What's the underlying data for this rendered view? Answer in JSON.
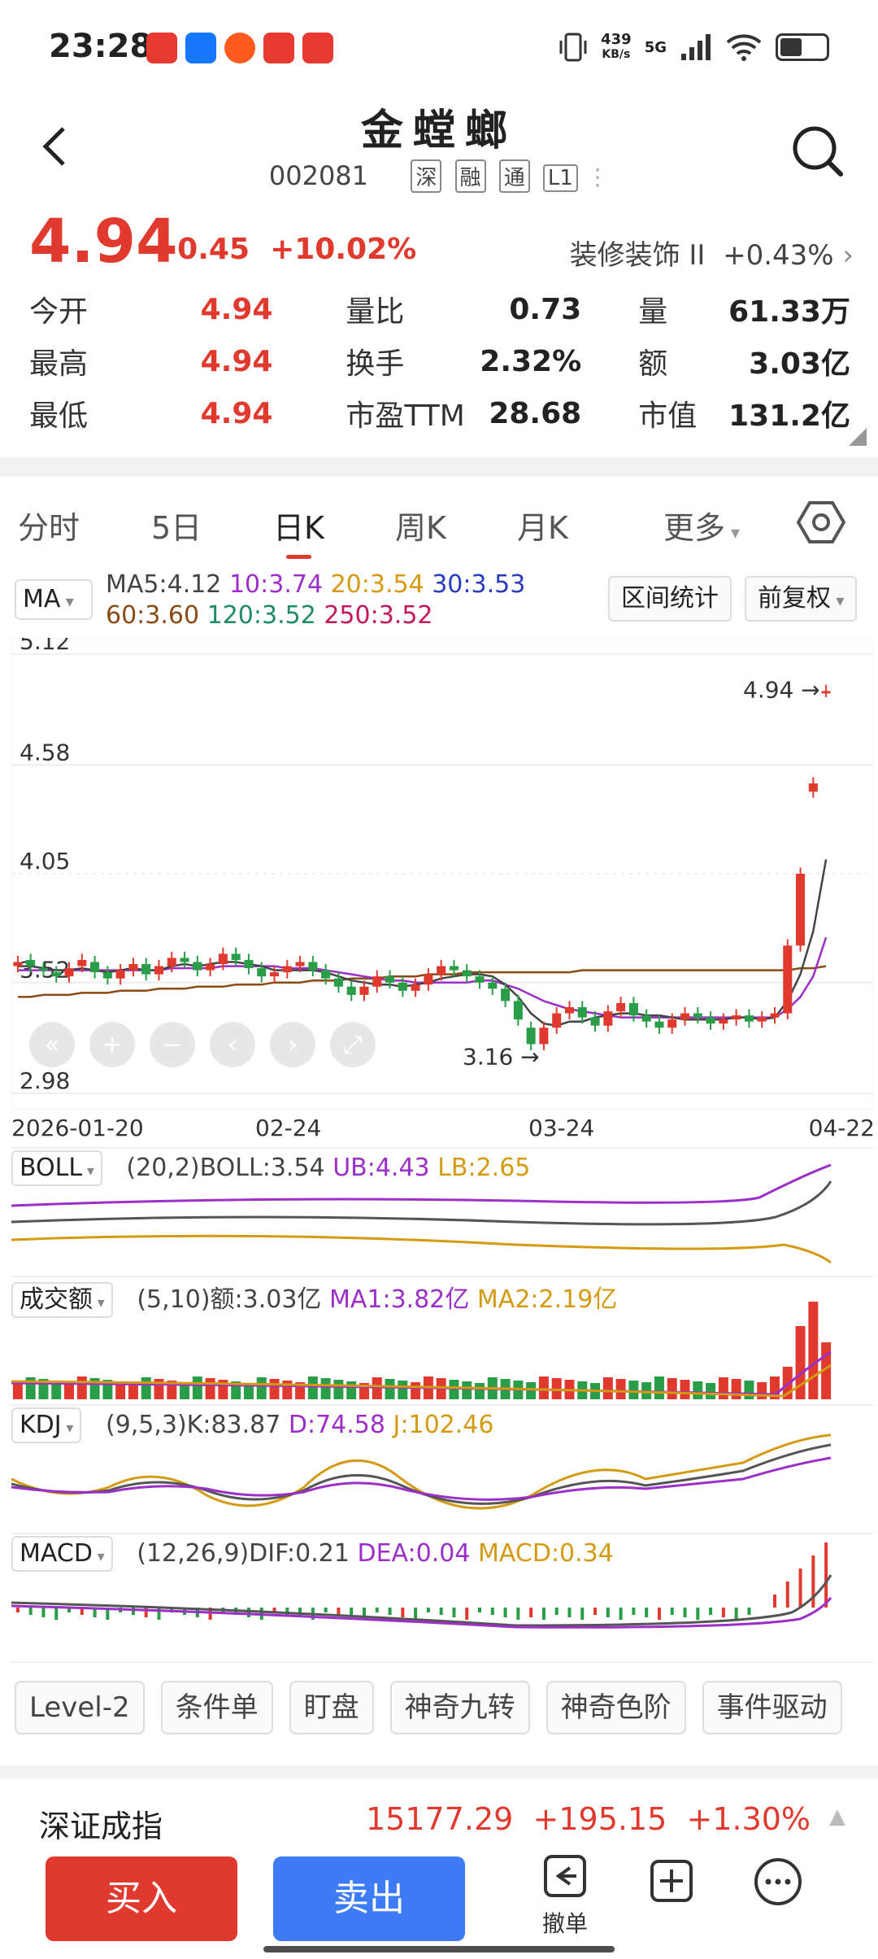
{
  "status": {
    "time": "23:28",
    "speed_value": "439",
    "speed_unit": "KB/s",
    "network": "5G",
    "battery_level": 0.45
  },
  "header": {
    "title": "金螳螂",
    "code": "002081",
    "tags": [
      "深",
      "融",
      "通",
      "L1"
    ]
  },
  "quote": {
    "price": "4.94",
    "change": "+0.45",
    "change_pct": "+10.02%",
    "sector_name": "装修装饰 II",
    "sector_change": "+0.43%",
    "rows": [
      {
        "k1": "今开",
        "v1": "4.94",
        "k2": "量比",
        "v2": "0.73",
        "k3": "量",
        "v3": "61.33万"
      },
      {
        "k1": "最高",
        "v1": "4.94",
        "k2": "换手",
        "v2": "2.32%",
        "k3": "额",
        "v3": "3.03亿"
      },
      {
        "k1": "最低",
        "v1": "4.94",
        "k2": "市盈TTM",
        "v2": "28.68",
        "k3": "市值",
        "v3": "131.2亿"
      }
    ]
  },
  "tabs": [
    "分时",
    "5日",
    "日K",
    "周K",
    "月K",
    "更多"
  ],
  "ma": {
    "select": "MA",
    "line1": [
      {
        "text": "MA5:4.12",
        "color": "#444444"
      },
      {
        "text": "10:3.74",
        "color": "#9b2fc7"
      },
      {
        "text": "20:3.54",
        "color": "#d49a12"
      },
      {
        "text": "30:3.53",
        "color": "#2b3bbd"
      }
    ],
    "line2": [
      {
        "text": "60:3.60",
        "color": "#8b4a14"
      },
      {
        "text": "120:3.52",
        "color": "#1f8a6a"
      },
      {
        "text": "250:3.52",
        "color": "#c2185b"
      }
    ],
    "range_btn": "区间统计",
    "adjust_btn": "前复权"
  },
  "chart_data": {
    "type": "candlestick",
    "y_ticks": [
      "5.12",
      "4.58",
      "4.05",
      "3.52",
      "2.98"
    ],
    "ylim": [
      2.98,
      5.12
    ],
    "x_ticks": [
      "2026-01-20",
      "02-24",
      "03-24",
      "04-22"
    ],
    "high_label": "4.94",
    "low_label": "3.16",
    "closes": [
      3.62,
      3.6,
      3.58,
      3.55,
      3.59,
      3.63,
      3.57,
      3.54,
      3.58,
      3.61,
      3.56,
      3.6,
      3.64,
      3.62,
      3.58,
      3.61,
      3.66,
      3.63,
      3.59,
      3.55,
      3.57,
      3.6,
      3.62,
      3.58,
      3.54,
      3.5,
      3.46,
      3.5,
      3.55,
      3.52,
      3.48,
      3.51,
      3.56,
      3.6,
      3.58,
      3.55,
      3.52,
      3.49,
      3.43,
      3.34,
      3.22,
      3.3,
      3.37,
      3.4,
      3.35,
      3.31,
      3.38,
      3.42,
      3.36,
      3.33,
      3.3,
      3.34,
      3.37,
      3.35,
      3.32,
      3.34,
      3.36,
      3.33,
      3.35,
      3.37,
      3.7,
      4.05,
      4.49,
      4.94
    ],
    "opens": [
      3.6,
      3.63,
      3.59,
      3.57,
      3.55,
      3.6,
      3.62,
      3.57,
      3.54,
      3.58,
      3.61,
      3.56,
      3.6,
      3.64,
      3.62,
      3.58,
      3.61,
      3.66,
      3.63,
      3.59,
      3.55,
      3.57,
      3.6,
      3.62,
      3.58,
      3.54,
      3.5,
      3.46,
      3.5,
      3.55,
      3.52,
      3.48,
      3.51,
      3.56,
      3.6,
      3.58,
      3.55,
      3.52,
      3.49,
      3.43,
      3.3,
      3.22,
      3.3,
      3.37,
      3.4,
      3.35,
      3.31,
      3.38,
      3.42,
      3.36,
      3.33,
      3.3,
      3.34,
      3.37,
      3.35,
      3.32,
      3.34,
      3.36,
      3.33,
      3.35,
      3.37,
      3.7,
      4.45,
      4.94
    ],
    "ma5": [
      3.6,
      3.6,
      3.59,
      3.58,
      3.58,
      3.59,
      3.58,
      3.57,
      3.58,
      3.59,
      3.58,
      3.58,
      3.6,
      3.61,
      3.6,
      3.61,
      3.62,
      3.62,
      3.61,
      3.6,
      3.58,
      3.58,
      3.58,
      3.58,
      3.57,
      3.55,
      3.53,
      3.52,
      3.51,
      3.51,
      3.5,
      3.51,
      3.52,
      3.54,
      3.55,
      3.56,
      3.56,
      3.55,
      3.51,
      3.45,
      3.37,
      3.32,
      3.31,
      3.33,
      3.33,
      3.35,
      3.36,
      3.37,
      3.37,
      3.36,
      3.36,
      3.35,
      3.34,
      3.34,
      3.34,
      3.34,
      3.35,
      3.35,
      3.34,
      3.35,
      3.43,
      3.56,
      3.77,
      4.12
    ],
    "ma10": [
      3.58,
      3.58,
      3.58,
      3.58,
      3.58,
      3.58,
      3.58,
      3.58,
      3.58,
      3.58,
      3.58,
      3.58,
      3.59,
      3.59,
      3.59,
      3.59,
      3.6,
      3.6,
      3.6,
      3.6,
      3.6,
      3.59,
      3.59,
      3.59,
      3.58,
      3.57,
      3.56,
      3.55,
      3.54,
      3.53,
      3.53,
      3.52,
      3.52,
      3.52,
      3.52,
      3.52,
      3.53,
      3.53,
      3.51,
      3.49,
      3.46,
      3.43,
      3.41,
      3.39,
      3.38,
      3.37,
      3.36,
      3.35,
      3.35,
      3.35,
      3.35,
      3.35,
      3.35,
      3.35,
      3.35,
      3.35,
      3.35,
      3.35,
      3.35,
      3.35,
      3.39,
      3.45,
      3.55,
      3.74
    ],
    "ma60": [
      3.45,
      3.45,
      3.46,
      3.46,
      3.46,
      3.47,
      3.47,
      3.47,
      3.48,
      3.48,
      3.48,
      3.49,
      3.49,
      3.49,
      3.5,
      3.5,
      3.5,
      3.51,
      3.51,
      3.51,
      3.52,
      3.52,
      3.52,
      3.53,
      3.53,
      3.53,
      3.54,
      3.54,
      3.54,
      3.55,
      3.55,
      3.55,
      3.56,
      3.56,
      3.56,
      3.57,
      3.57,
      3.57,
      3.57,
      3.57,
      3.57,
      3.57,
      3.57,
      3.57,
      3.58,
      3.58,
      3.58,
      3.58,
      3.58,
      3.58,
      3.58,
      3.58,
      3.58,
      3.58,
      3.58,
      3.58,
      3.58,
      3.58,
      3.58,
      3.58,
      3.58,
      3.59,
      3.59,
      3.6
    ]
  },
  "indicators": [
    {
      "select": "BOLL",
      "params": "(20,2)BOLL:3.54",
      "v1": "UB:4.43",
      "v2": "LB:2.65"
    },
    {
      "select": "成交额",
      "params": "(5,10)额:3.03亿",
      "v1": "MA1:3.82亿",
      "v2": "MA2:2.19亿"
    },
    {
      "select": "KDJ",
      "params": "(9,5,3)K:83.87",
      "v1": "D:74.58",
      "v2": "J:102.46"
    },
    {
      "select": "MACD",
      "params": "(12,26,9)DIF:0.21",
      "v1": "DEA:0.04",
      "v2": "MACD:0.34"
    }
  ],
  "functions": [
    "Level-2",
    "条件单",
    "盯盘",
    "神奇九转",
    "神奇色阶",
    "事件驱动"
  ],
  "index": {
    "name": "深证成指",
    "value": "15177.29",
    "change": "+195.15",
    "change_pct": "+1.30%"
  },
  "bottom": {
    "buy": "买入",
    "sell": "卖出",
    "cancel": "撤单"
  },
  "colors": {
    "up": "#e03a2f",
    "down": "#2a9d48",
    "sell": "#3d7cf5"
  }
}
